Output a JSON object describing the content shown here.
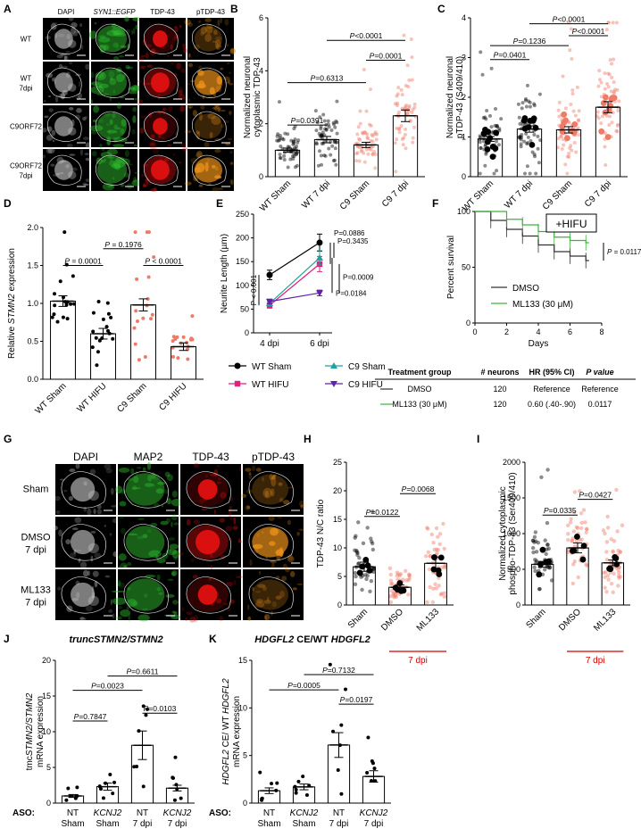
{
  "panels": {
    "A": "A",
    "B": "B",
    "C": "C",
    "D": "D",
    "E": "E",
    "F": "F",
    "G": "G",
    "H": "H",
    "I": "I",
    "J": "J",
    "K": "K"
  },
  "panelA": {
    "cols": [
      "DAPI",
      "SYN1::EGFP",
      "TDP-43",
      "pTDP-43"
    ],
    "rows": [
      "WT",
      "WT 7dpi",
      "C9ORF72",
      "C9ORF72 7dpi"
    ]
  },
  "panelG": {
    "cols": [
      "DAPI",
      "MAP2",
      "TDP-43",
      "pTDP-43"
    ],
    "rows": [
      "Sham",
      "DMSO 7 dpi",
      "ML133 7 dpi"
    ]
  },
  "colors": {
    "dapi": "#cfcfcf",
    "egfp": "#2fbf2f",
    "tdp": "#e01010",
    "ptdp": "#e8901a",
    "wt": "#000000",
    "c9": "#f07a68",
    "sig": "#000000",
    "hifu_wt": "#e0207a",
    "c9sham": "#20a0a0",
    "c9hifu": "#6020b0",
    "ml133": "#3cb33c",
    "red_label": "#d40000"
  },
  "chart_data": [
    {
      "id": "B",
      "type": "bar",
      "ylabel": "Normalized neuronal cytoplasmic TDP-43",
      "ylim": [
        0,
        6
      ],
      "yticks": [
        "0",
        "2",
        "4",
        "6"
      ],
      "categories": [
        "WT Sham",
        "WT 7 dpi",
        "C9 Sham",
        "C9 7 dpi"
      ],
      "values": [
        1.0,
        1.4,
        1.2,
        2.3
      ],
      "err": [
        0.08,
        0.12,
        0.1,
        0.22
      ],
      "colors": [
        "wt",
        "wt",
        "c9",
        "c9"
      ],
      "comparisons": [
        {
          "a": 0,
          "b": 1,
          "y": 1.95,
          "label": "P=0.0391"
        },
        {
          "a": 0,
          "b": 2,
          "y": 3.55,
          "label": "P=0.6313"
        },
        {
          "a": 2,
          "b": 3,
          "y": 4.4,
          "label": "P=0.0001"
        },
        {
          "a": 1,
          "b": 3,
          "y": 5.15,
          "label": "P<0.0001"
        }
      ]
    },
    {
      "id": "C",
      "type": "bar",
      "ylabel": "Normalized neuronal pTDP-43 (S409/410)",
      "ylim": [
        0,
        4
      ],
      "yticks": [
        "0",
        "1",
        "2",
        "3",
        "4"
      ],
      "categories": [
        "WT Sham",
        "WT 7 dpi",
        "C9 Sham",
        "C9 7 dpi"
      ],
      "values": [
        0.95,
        1.2,
        1.18,
        1.75
      ],
      "err": [
        0.06,
        0.08,
        0.08,
        0.14
      ],
      "colors": [
        "wt",
        "wt",
        "c9",
        "c9"
      ],
      "comparisons": [
        {
          "a": 0,
          "b": 1,
          "y": 2.95,
          "label": "P=0.0401"
        },
        {
          "a": 0,
          "b": 2,
          "y": 3.3,
          "label": "P=0.1236"
        },
        {
          "a": 2,
          "b": 3,
          "y": 3.55,
          "label": "P<0.0001"
        },
        {
          "a": 1,
          "b": 3,
          "y": 3.85,
          "label": "P<0.0001"
        }
      ]
    },
    {
      "id": "D",
      "type": "bar",
      "ylabel": "Relative STMN2 expression",
      "ylim": [
        0,
        2.0
      ],
      "yticks": [
        "0.0",
        "0.5",
        "1.0",
        "1.5",
        "2.0"
      ],
      "categories": [
        "WT Sham",
        "WT HIFU",
        "C9 Sham",
        "C9 HIFU"
      ],
      "values": [
        1.03,
        0.6,
        0.98,
        0.43
      ],
      "err": [
        0.07,
        0.07,
        0.08,
        0.05
      ],
      "colors": [
        "wt",
        "wt",
        "c9",
        "c9"
      ],
      "comparisons": [
        {
          "a": 0,
          "b": 1,
          "y": 1.5,
          "label": "P = 0.0001"
        },
        {
          "a": 2,
          "b": 3,
          "y": 1.5,
          "label": "P < 0.0001"
        },
        {
          "a": 1,
          "b": 2,
          "y": 1.72,
          "label": "P = 0.1976"
        }
      ]
    },
    {
      "id": "E",
      "type": "line",
      "ylabel": "Neurite Length (µm)",
      "ylim": [
        0,
        250
      ],
      "yticks": [
        "0",
        "50",
        "100",
        "150",
        "200",
        "250"
      ],
      "x": [
        "4 dpi",
        "6 dpi"
      ],
      "series": [
        {
          "name": "WT Sham",
          "values": [
            122,
            190
          ],
          "err": [
            10,
            18
          ],
          "color": "wt",
          "marker": "circle"
        },
        {
          "name": "WT HIFU",
          "values": [
            58,
            145
          ],
          "err": [
            6,
            16
          ],
          "color": "hifu_wt",
          "marker": "square"
        },
        {
          "name": "C9 Sham",
          "values": [
            62,
            158
          ],
          "err": [
            5,
            15
          ],
          "color": "c9sham",
          "marker": "triangle"
        },
        {
          "name": "C9 HIFU",
          "values": [
            66,
            84
          ],
          "err": [
            5,
            6
          ],
          "color": "c9hifu",
          "marker": "triangle-down"
        }
      ],
      "stats": [
        "P=0.0886",
        "P=0.3435",
        "P=0.0009",
        "P=0.0184",
        "P < 0.001"
      ]
    },
    {
      "id": "F",
      "type": "line",
      "ylabel": "Percent survival",
      "xlabel": "Days",
      "xlim": [
        0,
        8
      ],
      "ylim": [
        0,
        100
      ],
      "xticks": [
        "0",
        "2",
        "4",
        "6",
        "8"
      ],
      "yticks": [
        "0",
        "50",
        "100"
      ],
      "box": "+HIFU",
      "pvalue": "P = 0.0117",
      "series": [
        {
          "name": "DMSO",
          "color": "#333333",
          "steps": [
            [
              0,
              100
            ],
            [
              1,
              92
            ],
            [
              2,
              84
            ],
            [
              3,
              78
            ],
            [
              4,
              70
            ],
            [
              5,
              64
            ],
            [
              6,
              60
            ],
            [
              7,
              56
            ]
          ]
        },
        {
          "name": "ML133 (30 μM)",
          "color": "ml133",
          "steps": [
            [
              0,
              100
            ],
            [
              2,
              93
            ],
            [
              3,
              88
            ],
            [
              4,
              82
            ],
            [
              5,
              77
            ],
            [
              6,
              74
            ],
            [
              7,
              72
            ]
          ]
        }
      ],
      "table": {
        "headers": [
          "Treatment group",
          "# neurons",
          "HR (95% CI)",
          "P value"
        ],
        "rows": [
          [
            "DMSO",
            "120",
            "Reference",
            "Reference"
          ],
          [
            "ML133 (30 μM)",
            "120",
            "0.60 (.40-.90)",
            "0.0117"
          ]
        ]
      }
    },
    {
      "id": "H",
      "type": "bar",
      "ylabel": "TDP-43 N/C ratio",
      "ylim": [
        0,
        25
      ],
      "yticks": [
        "0",
        "5",
        "10",
        "15",
        "20",
        "25"
      ],
      "categories": [
        "Sham",
        "DMSO",
        "ML133"
      ],
      "values": [
        6.7,
        3.1,
        7.3
      ],
      "err": [
        0.8,
        0.4,
        1.1
      ],
      "colors": [
        "wt",
        "c9",
        "c9"
      ],
      "group_label": "7 dpi",
      "comparisons": [
        {
          "a": 0,
          "b": 1,
          "y": 15.5,
          "label": "P=0.0122"
        },
        {
          "a": 1,
          "b": 2,
          "y": 19.5,
          "label": "P=0.0068"
        }
      ]
    },
    {
      "id": "I",
      "type": "bar",
      "ylabel": "Normalized cytoplasmic phospho-TDP-43 (Ser409/410)",
      "ylim": [
        0,
        2000
      ],
      "yticks": [
        "0",
        "500",
        "1000",
        "1500",
        "2000"
      ],
      "categories": [
        "Sham",
        "DMSO",
        "ML133"
      ],
      "values": [
        570,
        800,
        590
      ],
      "err": [
        40,
        70,
        40
      ],
      "colors": [
        "wt",
        "c9",
        "c9"
      ],
      "group_label": "7 dpi",
      "comparisons": [
        {
          "a": 0,
          "b": 1,
          "y": 1260,
          "label": "P=0.0335"
        },
        {
          "a": 1,
          "b": 2,
          "y": 1480,
          "label": "P=0.0427"
        }
      ]
    },
    {
      "id": "J",
      "type": "bar",
      "title": "truncSTMN2/STMN2",
      "ylabel": "tmcSTMN2/STMN2 mRNA expression",
      "ylim": [
        0,
        20
      ],
      "yticks": [
        "0",
        "5",
        "10",
        "15",
        "20"
      ],
      "categories": [
        "NT Sham",
        "KCNJ2 Sham",
        "NT 7 dpi",
        "KCNJ2 7 dpi"
      ],
      "values": [
        1.0,
        2.3,
        8.1,
        2.1
      ],
      "err": [
        0.2,
        0.5,
        2.0,
        0.4
      ],
      "colors": [
        "wt",
        "wt",
        "wt",
        "wt"
      ],
      "comparisons": [
        {
          "a": 0,
          "b": 1,
          "y": 11.5,
          "label": "P=0.7847"
        },
        {
          "a": 0,
          "b": 2,
          "y": 15.8,
          "label": "P=0.0023"
        },
        {
          "a": 2,
          "b": 3,
          "y": 12.6,
          "label": "P=0.0103"
        },
        {
          "a": 1,
          "b": 3,
          "y": 17.8,
          "label": "P=0.6611"
        }
      ]
    },
    {
      "id": "K",
      "type": "bar",
      "title": "HDGFL2 CE/WT HDGFL2",
      "ylabel": "HDGFL2 CE/ WT HDGFL2 mRNA expression",
      "ylim": [
        0,
        15
      ],
      "yticks": [
        "0",
        "5",
        "10",
        "15"
      ],
      "categories": [
        "NT Sham",
        "KCNJ2 Sham",
        "NT 7 dpi",
        "KCNJ2 7 dpi"
      ],
      "values": [
        1.3,
        1.7,
        6.1,
        2.8
      ],
      "err": [
        0.3,
        0.3,
        1.3,
        0.6
      ],
      "colors": [
        "wt",
        "wt",
        "wt",
        "wt"
      ],
      "comparisons": [
        {
          "a": 0,
          "b": 2,
          "y": 11.9,
          "label": "P=0.0005"
        },
        {
          "a": 2,
          "b": 3,
          "y": 10.4,
          "label": "P=0.0197"
        },
        {
          "a": 1,
          "b": 3,
          "y": 13.5,
          "label": "P=0.7132"
        }
      ]
    }
  ],
  "aso_label": "ASO:",
  "aso_rows": [
    [
      "NT",
      "KCNJ2",
      "NT",
      "KCNJ2"
    ],
    [
      "Sham",
      "Sham",
      "7 dpi",
      "7 dpi"
    ]
  ]
}
